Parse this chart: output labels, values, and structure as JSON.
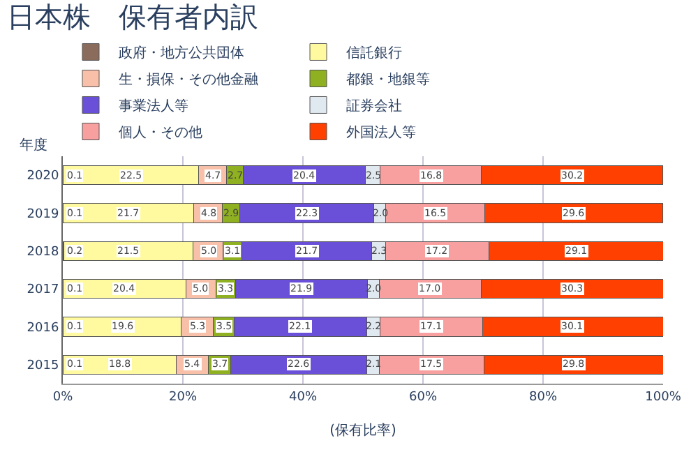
{
  "chart_data": {
    "type": "bar",
    "orientation": "horizontal",
    "stacked": true,
    "title": "日本株　保有者内訳",
    "ylabel": "年度",
    "xlabel": "(保有比率)",
    "categories": [
      "2020",
      "2019",
      "2018",
      "2017",
      "2016",
      "2015"
    ],
    "series": [
      {
        "name": "政府・地方公共団体",
        "color": "#8b6b5b",
        "values": [
          0.1,
          0.1,
          0.2,
          0.1,
          0.1,
          0.1
        ],
        "value_labels": [
          "0.1",
          "0.1",
          "0.2",
          "0.1",
          "0.1",
          "0.1"
        ]
      },
      {
        "name": "信託銀行",
        "color": "#fffaa0",
        "values": [
          22.5,
          21.7,
          21.5,
          20.4,
          19.6,
          18.8
        ],
        "value_labels": [
          "22.5",
          "21.7",
          "21.5",
          "20.4",
          "19.6",
          "18.8"
        ]
      },
      {
        "name": "生・損保・その他金融",
        "color": "#f8c0a8",
        "values": [
          4.7,
          4.8,
          5.0,
          5.0,
          5.3,
          5.4
        ],
        "value_labels": [
          "4.7",
          "4.8",
          "5.0",
          "5.0",
          "5.3",
          "5.4"
        ]
      },
      {
        "name": "都銀・地銀等",
        "color": "#8fb020",
        "values": [
          2.7,
          2.9,
          3.1,
          3.3,
          3.5,
          3.7
        ],
        "value_labels": [
          "2.7",
          "2.9",
          "3.1",
          "3.3",
          "3.5",
          "3.7"
        ]
      },
      {
        "name": "事業法人等",
        "color": "#6a50d8",
        "values": [
          20.4,
          22.3,
          21.7,
          21.9,
          22.1,
          22.6
        ],
        "value_labels": [
          "20.4",
          "22.3",
          "21.7",
          "21.9",
          "22.1",
          "22.6"
        ]
      },
      {
        "name": "証券会社",
        "color": "#e0e8f0",
        "values": [
          2.5,
          2.0,
          2.3,
          2.0,
          2.2,
          2.1
        ],
        "value_labels": [
          "2.5",
          "2.0",
          "2.3",
          "2.0",
          "2.2",
          "2.1"
        ]
      },
      {
        "name": "個人・その他",
        "color": "#f8a0a0",
        "values": [
          16.8,
          16.5,
          17.2,
          17.0,
          17.1,
          17.5
        ],
        "value_labels": [
          "16.8",
          "16.5",
          "17.2",
          "17.0",
          "17.1",
          "17.5"
        ]
      },
      {
        "name": "外国法人等",
        "color": "#ff4000",
        "values": [
          30.2,
          29.6,
          29.1,
          30.3,
          30.1,
          29.8
        ],
        "value_labels": [
          "30.2",
          "29.6",
          "29.1",
          "30.3",
          "30.1",
          "29.8"
        ]
      }
    ],
    "xlim": [
      0,
      100
    ],
    "xticks": [
      {
        "value": 0,
        "label": "0%"
      },
      {
        "value": 20,
        "label": "20%"
      },
      {
        "value": 40,
        "label": "40%"
      },
      {
        "value": 60,
        "label": "60%"
      },
      {
        "value": 80,
        "label": "80%"
      },
      {
        "value": 100,
        "label": "100%"
      }
    ],
    "grid": "x",
    "legend": "top"
  }
}
